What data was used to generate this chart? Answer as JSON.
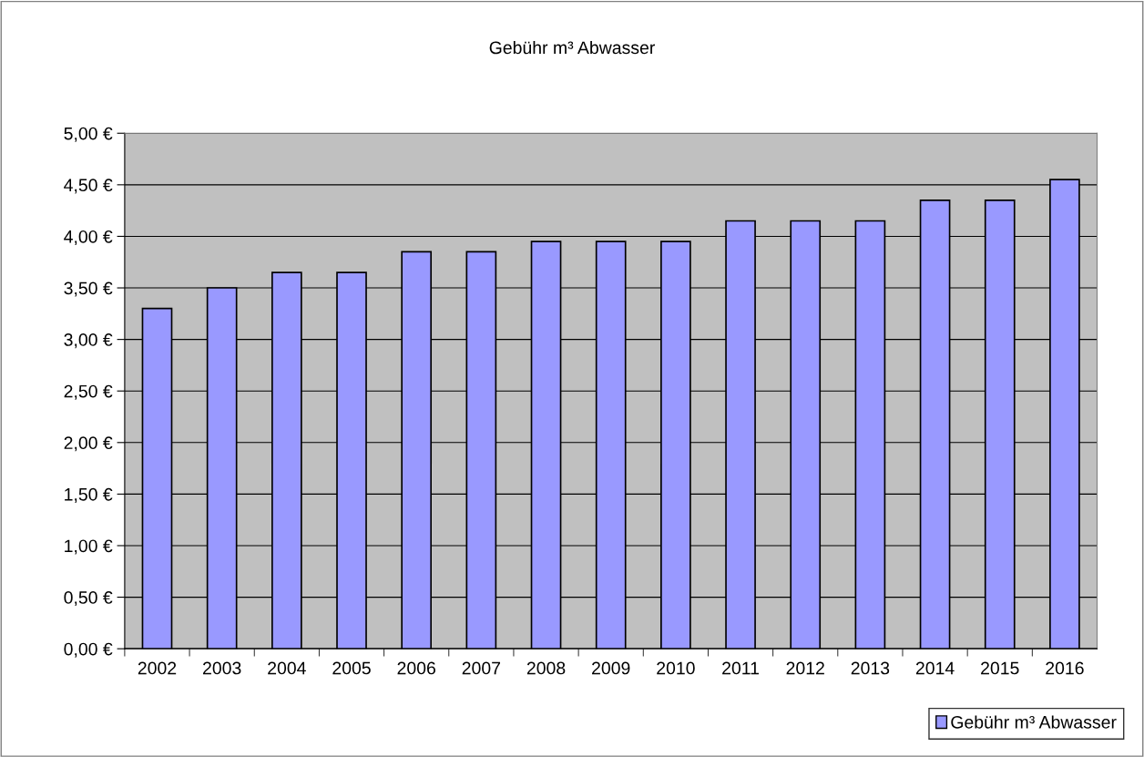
{
  "chart_data": {
    "type": "bar",
    "title": "Gebühr m³ Abwasser",
    "categories": [
      "2002",
      "2003",
      "2004",
      "2005",
      "2006",
      "2007",
      "2008",
      "2009",
      "2010",
      "2011",
      "2012",
      "2013",
      "2014",
      "2015",
      "2016"
    ],
    "series": [
      {
        "name": "Gebühr m³ Abwasser",
        "color": "#9999ff",
        "values": [
          3.3,
          3.5,
          3.65,
          3.65,
          3.85,
          3.85,
          3.95,
          3.95,
          3.95,
          4.15,
          4.15,
          4.15,
          4.35,
          4.35,
          4.55
        ]
      }
    ],
    "ylim": [
      0,
      5
    ],
    "yticks": [
      {
        "value": 0,
        "label": "0,00 €"
      },
      {
        "value": 0.5,
        "label": "0,50 €"
      },
      {
        "value": 1,
        "label": "1,00 €"
      },
      {
        "value": 1.5,
        "label": "1,50 €"
      },
      {
        "value": 2,
        "label": "2,00 €"
      },
      {
        "value": 2.5,
        "label": "2,50 €"
      },
      {
        "value": 3,
        "label": "3,00 €"
      },
      {
        "value": 3.5,
        "label": "3,50 €"
      },
      {
        "value": 4,
        "label": "4,00 €"
      },
      {
        "value": 4.5,
        "label": "4,50 €"
      },
      {
        "value": 5,
        "label": "5,00 €"
      }
    ],
    "grid": "y",
    "legend": "bottom right"
  }
}
